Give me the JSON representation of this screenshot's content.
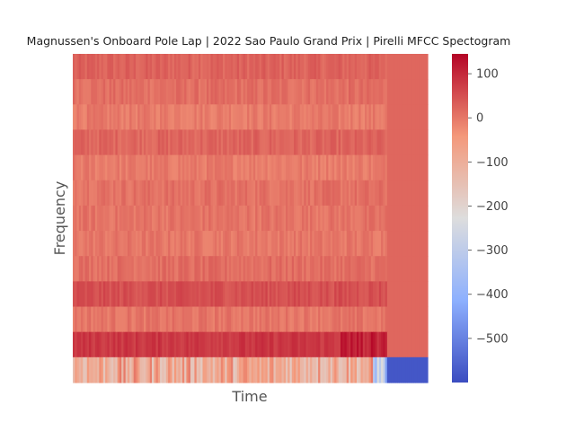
{
  "chart_data": {
    "type": "heatmap",
    "title": "Magnussen's Onboard Pole Lap | 2022 Sao Paulo Grand Prix | Pirelli MFCC Spectogram",
    "xlabel": "Time",
    "ylabel": "Frequency",
    "colormap": "coolwarm",
    "colorbar": {
      "min": -600,
      "max": 145,
      "ticks": [
        100,
        0,
        -100,
        -200,
        -300,
        -400,
        -500
      ],
      "tick_labels": [
        "100",
        "0",
        "−100",
        "−200",
        "−300",
        "−400",
        "−500"
      ]
    },
    "grid": false,
    "n_rows": 13,
    "row_means_top_to_bottom": [
      25,
      10,
      -5,
      22,
      -5,
      8,
      4,
      0,
      12,
      50,
      2,
      80,
      -90
    ],
    "silent_tail_value_top_to_bottom": [
      20,
      20,
      20,
      20,
      20,
      20,
      20,
      20,
      20,
      20,
      20,
      20,
      -580
    ]
  }
}
